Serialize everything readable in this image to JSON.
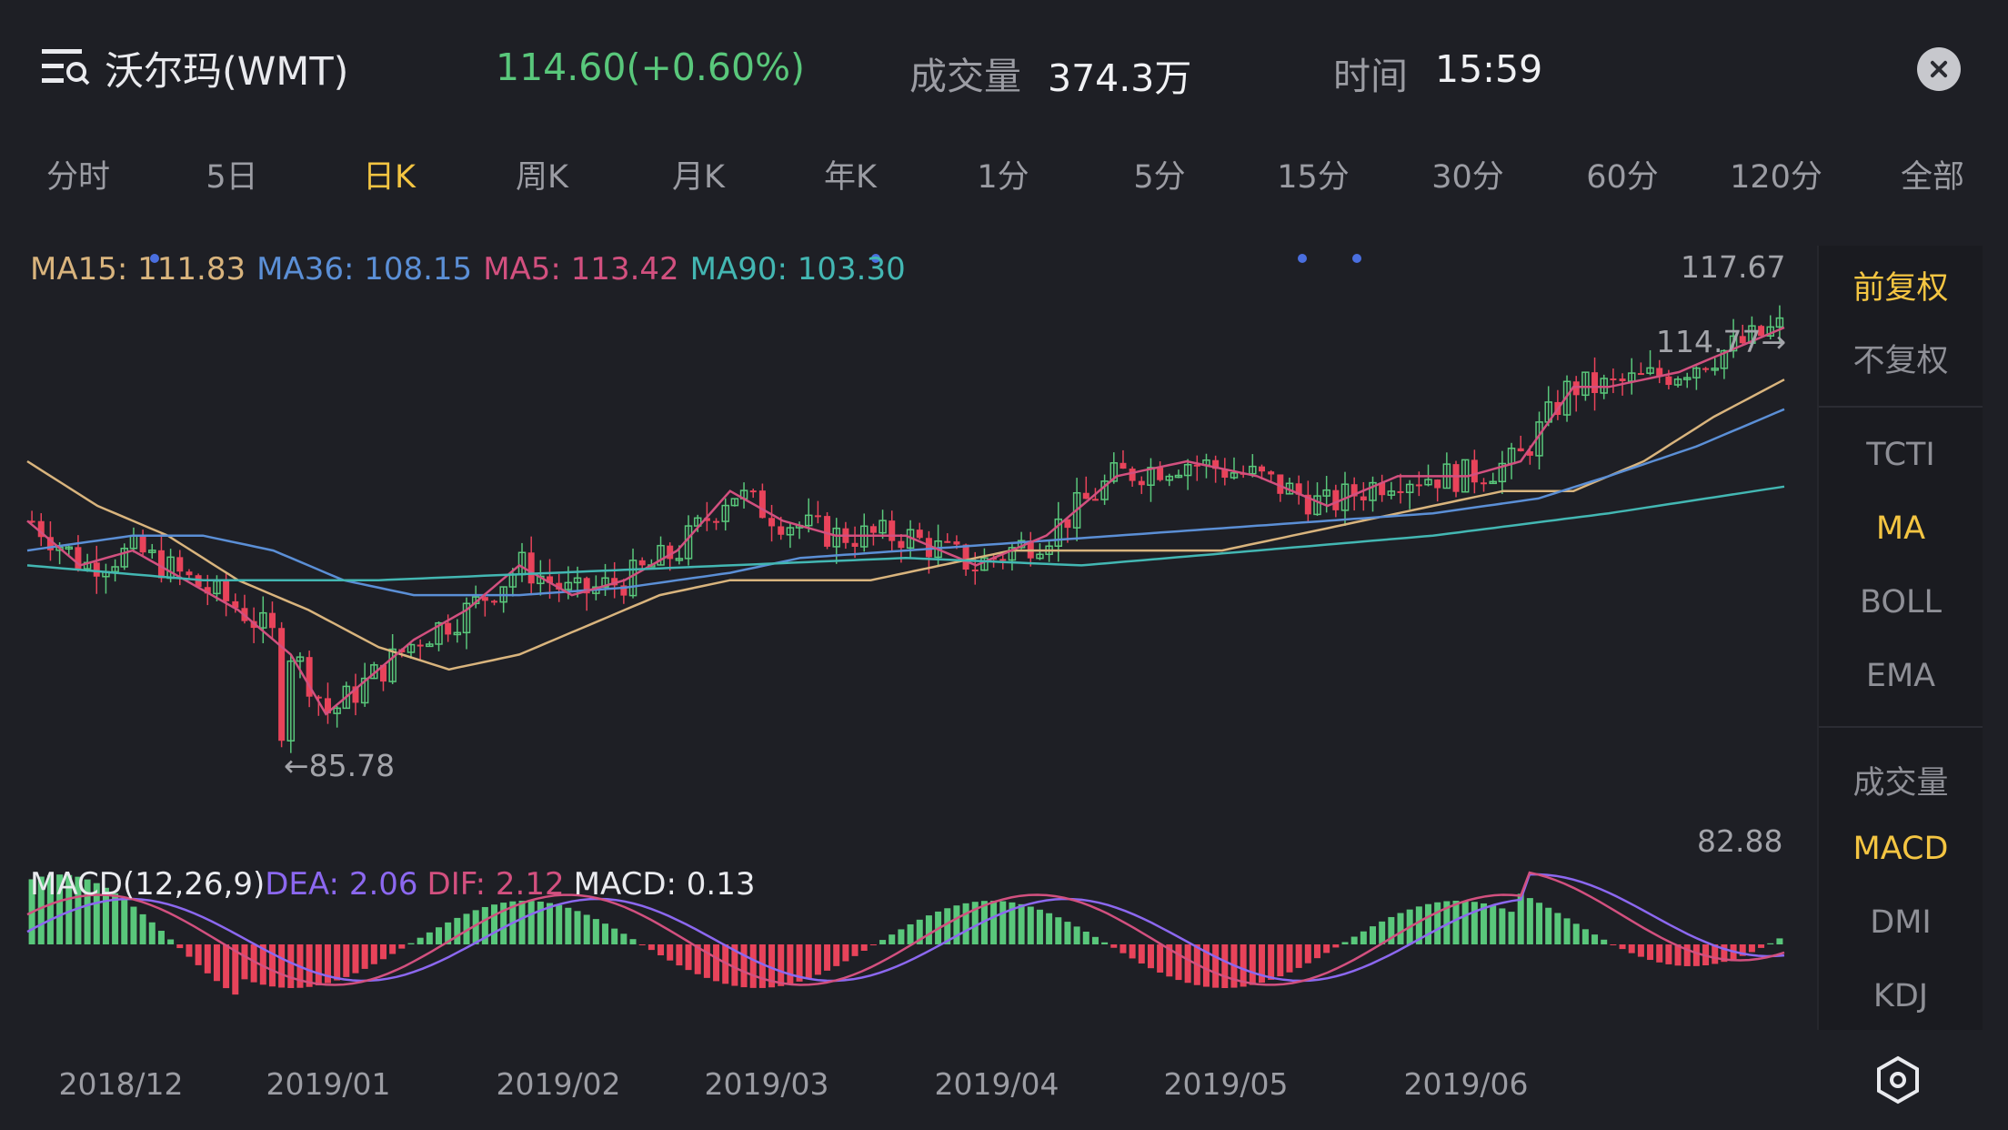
{
  "header": {
    "title": "沃尔玛(WMT)",
    "price_change": "114.60(+0.60%)",
    "volume_label": "成交量",
    "volume_value": "374.3万",
    "time_label": "时间",
    "time_value": "15:59"
  },
  "tabs": [
    "分时",
    "5日",
    "日K",
    "周K",
    "月K",
    "年K",
    "1分",
    "5分",
    "15分",
    "30分",
    "60分",
    "120分",
    "全部"
  ],
  "active_tab": "日K",
  "ma_legend": {
    "ma15": "MA15: 111.83",
    "ma36": "MA36: 108.15",
    "ma5": "MA5: 113.42",
    "ma90": "MA90: 103.30"
  },
  "price_axis": {
    "top": "117.67",
    "max_marker": "114.77",
    "min_marker": "85.78"
  },
  "macd_axis": {
    "top": "82.88"
  },
  "macd_legend": {
    "params": "MACD(12,26,9)",
    "dea": "DEA: 2.06",
    "dif": "DIF: 2.12",
    "macd": "MACD: 0.13"
  },
  "side_menu": {
    "adjust": [
      "前复权",
      "不复权"
    ],
    "main": [
      "TCTI",
      "MA",
      "BOLL",
      "EMA"
    ],
    "sub": [
      "成交量",
      "MACD",
      "DMI",
      "KDJ"
    ],
    "active_adjust": "前复权",
    "active_main": "MA",
    "active_sub": "MACD"
  },
  "date_labels": [
    "2018/12",
    "2019/01",
    "2019/02",
    "2019/03",
    "2019/04",
    "2019/05",
    "2019/06"
  ],
  "icons": {
    "menu": "list-search-icon",
    "close": "close-icon",
    "settings": "hexagon-settings-icon"
  },
  "colors": {
    "up": "#59c77b",
    "down": "#e8435a",
    "ma15": "#d9b47d",
    "ma36": "#5b8fd6",
    "ma5": "#d2507f",
    "ma90": "#43b7b3",
    "dea": "#8c68f0",
    "dif": "#d2507f",
    "active": "#f4c542"
  },
  "chart_data": {
    "type": "candlestick",
    "price_range": [
      84.5,
      117.67
    ],
    "ma_lines": {
      "MA15": [
        [
          0,
          105
        ],
        [
          0.04,
          102
        ],
        [
          0.08,
          100
        ],
        [
          0.12,
          97
        ],
        [
          0.16,
          95
        ],
        [
          0.2,
          92.5
        ],
        [
          0.24,
          91
        ],
        [
          0.28,
          92
        ],
        [
          0.32,
          94
        ],
        [
          0.36,
          96
        ],
        [
          0.4,
          97
        ],
        [
          0.44,
          97
        ],
        [
          0.48,
          97
        ],
        [
          0.52,
          98
        ],
        [
          0.56,
          99
        ],
        [
          0.6,
          99
        ],
        [
          0.64,
          99
        ],
        [
          0.68,
          99
        ],
        [
          0.72,
          100
        ],
        [
          0.76,
          101
        ],
        [
          0.8,
          102
        ],
        [
          0.84,
          103
        ],
        [
          0.88,
          103
        ],
        [
          0.92,
          105
        ],
        [
          0.96,
          108
        ],
        [
          1,
          110.5
        ]
      ],
      "MA36": [
        [
          0,
          99
        ],
        [
          0.06,
          100
        ],
        [
          0.1,
          100
        ],
        [
          0.14,
          99
        ],
        [
          0.18,
          97
        ],
        [
          0.22,
          96
        ],
        [
          0.28,
          96
        ],
        [
          0.34,
          96.5
        ],
        [
          0.4,
          97.5
        ],
        [
          0.44,
          98.5
        ],
        [
          0.5,
          99
        ],
        [
          0.56,
          99.5
        ],
        [
          0.62,
          100
        ],
        [
          0.68,
          100.5
        ],
        [
          0.74,
          101
        ],
        [
          0.8,
          101.5
        ],
        [
          0.86,
          102.5
        ],
        [
          0.9,
          104
        ],
        [
          0.95,
          106
        ],
        [
          1,
          108.5
        ]
      ],
      "MA5": [
        [
          0,
          101
        ],
        [
          0.03,
          98
        ],
        [
          0.06,
          99
        ],
        [
          0.09,
          97
        ],
        [
          0.12,
          95
        ],
        [
          0.15,
          92
        ],
        [
          0.17,
          88
        ],
        [
          0.19,
          90
        ],
        [
          0.22,
          93
        ],
        [
          0.25,
          95
        ],
        [
          0.28,
          98
        ],
        [
          0.31,
          96
        ],
        [
          0.34,
          97
        ],
        [
          0.37,
          99
        ],
        [
          0.4,
          103
        ],
        [
          0.43,
          101
        ],
        [
          0.46,
          100
        ],
        [
          0.5,
          100
        ],
        [
          0.54,
          98
        ],
        [
          0.58,
          100
        ],
        [
          0.62,
          104
        ],
        [
          0.66,
          105
        ],
        [
          0.7,
          104
        ],
        [
          0.74,
          102
        ],
        [
          0.78,
          104
        ],
        [
          0.82,
          104
        ],
        [
          0.85,
          105
        ],
        [
          0.88,
          110
        ],
        [
          0.9,
          110
        ],
        [
          0.94,
          111
        ],
        [
          1,
          114
        ]
      ],
      "MA90": [
        [
          0,
          98
        ],
        [
          0.1,
          97
        ],
        [
          0.2,
          97
        ],
        [
          0.3,
          97.5
        ],
        [
          0.4,
          98
        ],
        [
          0.5,
          98.5
        ],
        [
          0.6,
          98
        ],
        [
          0.7,
          99
        ],
        [
          0.8,
          100
        ],
        [
          0.9,
          101.5
        ],
        [
          1,
          103.3
        ]
      ]
    }
  }
}
